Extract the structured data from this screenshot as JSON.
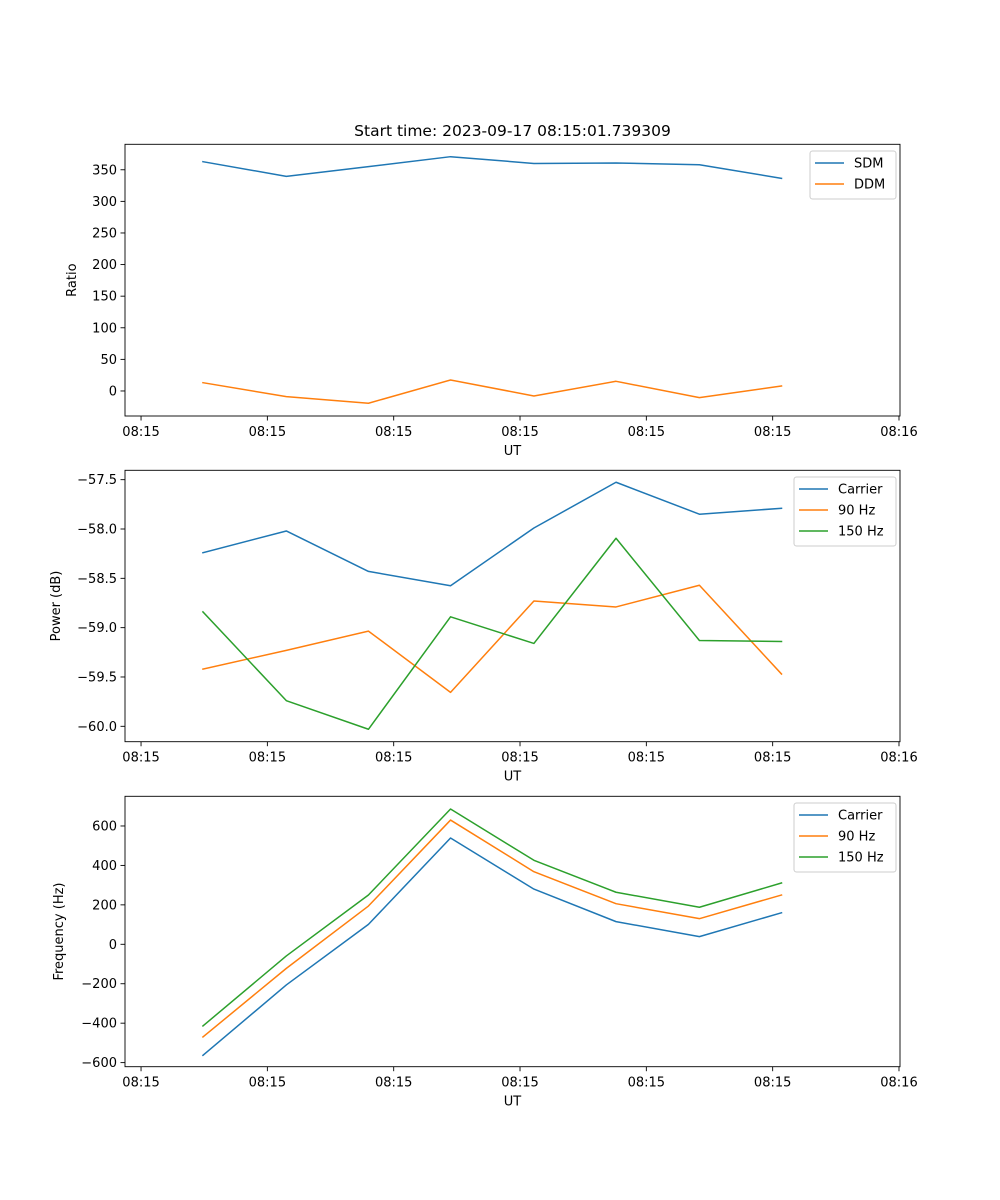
{
  "figure": {
    "title": "Start time: 2023-09-17 08:15:01.739309"
  },
  "chart_data": [
    {
      "type": "line",
      "title": "Start time: 2023-09-17 08:15:01.739309",
      "xlabel": "UT",
      "ylabel": "Ratio",
      "x_units": "seconds after 08:15:00 UT",
      "x": [
        4.9,
        11.5,
        18.0,
        24.5,
        31.1,
        37.6,
        44.2,
        50.7
      ],
      "xlim": [
        -1.27,
        60.08
      ],
      "xticks": [
        0,
        10,
        20,
        30,
        40,
        50,
        60
      ],
      "xtick_labels": [
        "08:15",
        "08:15",
        "08:15",
        "08:15",
        "08:15",
        "08:15",
        "08:16"
      ],
      "ylim": [
        -39.6,
        390.3
      ],
      "yticks": [
        0,
        50,
        100,
        150,
        200,
        250,
        300,
        350
      ],
      "ytick_labels": [
        "0",
        "50",
        "100",
        "150",
        "200",
        "250",
        "300",
        "350"
      ],
      "grid": false,
      "legend_position": "top-right",
      "series": [
        {
          "name": "SDM",
          "color": "#1f77b4",
          "values": [
            362.8,
            339.6,
            354.9,
            370.7,
            360.0,
            360.7,
            358.0,
            336.4
          ]
        },
        {
          "name": "DDM",
          "color": "#ff7f0e",
          "values": [
            13.1,
            -9.0,
            -19.4,
            17.4,
            -7.9,
            15.3,
            -10.6,
            7.9
          ]
        }
      ]
    },
    {
      "type": "line",
      "title": "",
      "xlabel": "UT",
      "ylabel": "Power (dB)",
      "x_units": "seconds after 08:15:00 UT",
      "x": [
        4.9,
        11.5,
        18.0,
        24.5,
        31.1,
        37.6,
        44.2,
        50.7
      ],
      "xlim": [
        -1.27,
        60.08
      ],
      "xticks": [
        0,
        10,
        20,
        30,
        40,
        50,
        60
      ],
      "xtick_labels": [
        "08:15",
        "08:15",
        "08:15",
        "08:15",
        "08:15",
        "08:15",
        "08:16"
      ],
      "ylim": [
        -60.156,
        -57.405
      ],
      "yticks": [
        -60.0,
        -59.5,
        -59.0,
        -58.5,
        -58.0,
        -57.5
      ],
      "ytick_labels": [
        "−60.0",
        "−59.5",
        "−59.0",
        "−58.5",
        "−58.0",
        "−57.5"
      ],
      "grid": false,
      "legend_position": "top-right",
      "series": [
        {
          "name": "Carrier",
          "color": "#1f77b4",
          "values": [
            -58.24,
            -58.02,
            -58.43,
            -58.575,
            -57.99,
            -57.526,
            -57.85,
            -57.79
          ]
        },
        {
          "name": "90 Hz",
          "color": "#ff7f0e",
          "values": [
            -59.42,
            -59.23,
            -59.035,
            -59.656,
            -58.73,
            -58.79,
            -58.57,
            -59.47
          ]
        },
        {
          "name": "150 Hz",
          "color": "#2ca02c",
          "values": [
            -58.84,
            -59.74,
            -60.03,
            -58.89,
            -59.16,
            -58.094,
            -59.13,
            -59.14
          ]
        }
      ]
    },
    {
      "type": "line",
      "title": "",
      "xlabel": "UT",
      "ylabel": "Frequency (Hz)",
      "x_units": "seconds after 08:15:00 UT",
      "x": [
        4.9,
        11.5,
        18.0,
        24.5,
        31.1,
        37.6,
        44.2,
        50.7
      ],
      "xlim": [
        -1.27,
        60.08
      ],
      "xticks": [
        0,
        10,
        20,
        30,
        40,
        50,
        60
      ],
      "xtick_labels": [
        "08:15",
        "08:15",
        "08:15",
        "08:15",
        "08:15",
        "08:15",
        "08:16"
      ],
      "ylim": [
        -620.7,
        750.5
      ],
      "yticks": [
        -600,
        -400,
        -200,
        0,
        200,
        400,
        600
      ],
      "ytick_labels": [
        "−600",
        "−400",
        "−200",
        "0",
        "200",
        "400",
        "600"
      ],
      "grid": false,
      "legend_position": "top-right",
      "series": [
        {
          "name": "Carrier",
          "color": "#1f77b4",
          "values": [
            -563,
            -206,
            101,
            539,
            280,
            115,
            39,
            160
          ]
        },
        {
          "name": "90 Hz",
          "color": "#ff7f0e",
          "values": [
            -470,
            -122,
            194,
            630,
            368,
            206,
            130,
            250
          ]
        },
        {
          "name": "150 Hz",
          "color": "#2ca02c",
          "values": [
            -414,
            -59,
            250,
            686,
            426,
            264,
            188,
            311
          ]
        }
      ]
    }
  ]
}
